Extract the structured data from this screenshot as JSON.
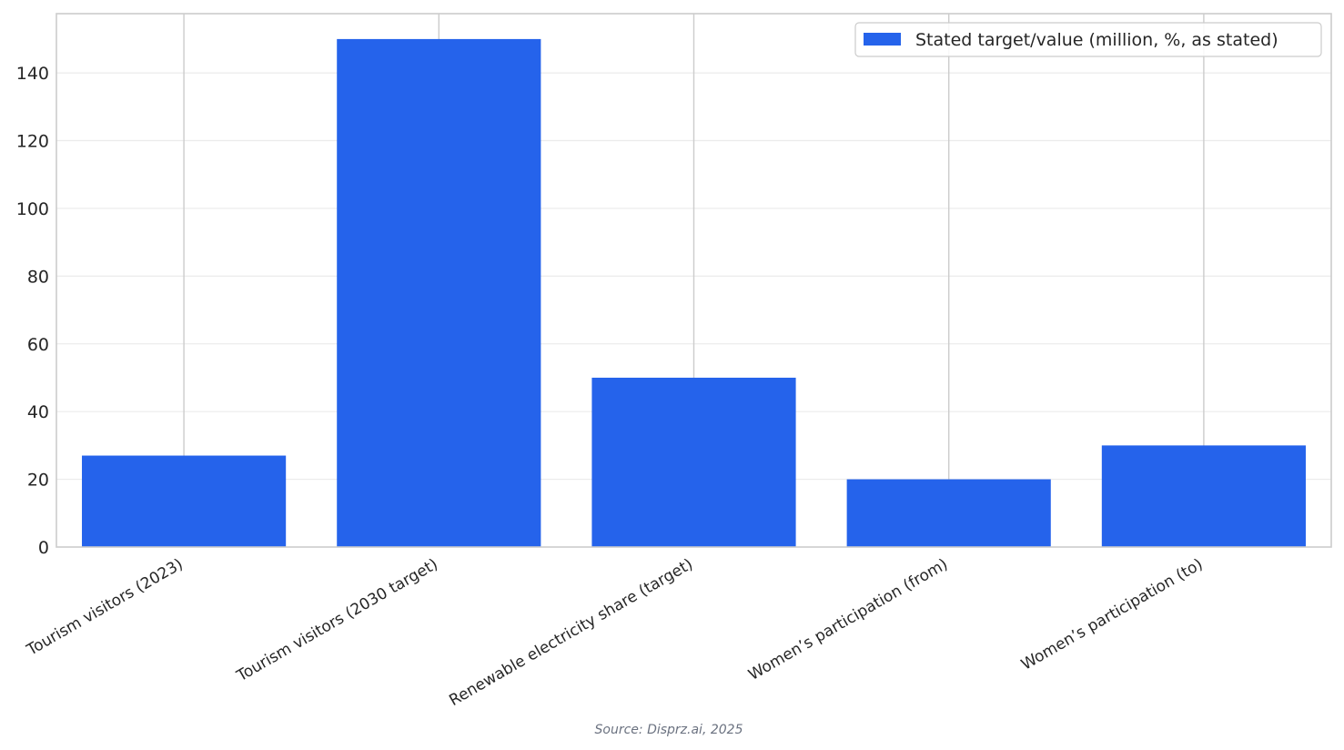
{
  "chart_data": {
    "type": "bar",
    "categories": [
      "Tourism visitors (2023)",
      "Tourism visitors (2030 target)",
      "Renewable electricity share (target)",
      "Women’s participation (from)",
      "Women’s participation (to)"
    ],
    "series": [
      {
        "name": "Stated target/value (million, %, as stated)",
        "values": [
          27,
          150,
          50,
          20,
          30
        ],
        "color": "#2563eb"
      }
    ],
    "title": "",
    "xlabel": "",
    "ylabel": "",
    "ylim": [
      0,
      157.5
    ],
    "yticks": [
      0,
      20,
      40,
      60,
      80,
      100,
      120,
      140
    ],
    "grid": true,
    "legend_position": "top-right",
    "source": "Source: Disprz.ai, 2025"
  }
}
